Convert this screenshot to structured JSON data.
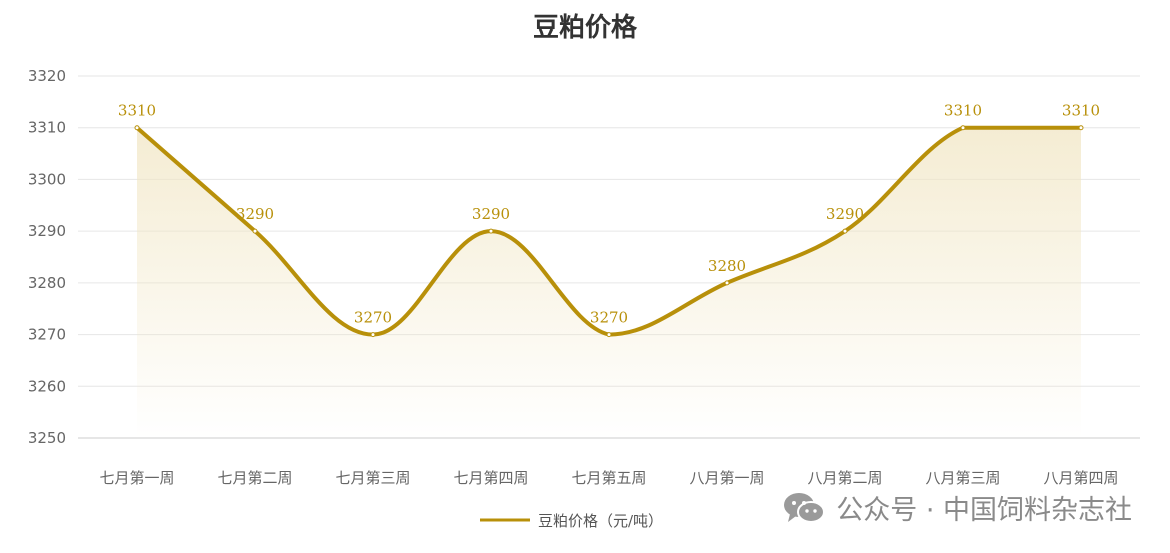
{
  "chart_data": {
    "type": "line",
    "title": "豆粕价格",
    "categories": [
      "七月第一周",
      "七月第二周",
      "七月第三周",
      "七月第四周",
      "七月第五周",
      "八月第一周",
      "八月第二周",
      "八月第三周",
      "八月第四周"
    ],
    "series": [
      {
        "name": "豆粕价格（元/吨）",
        "values": [
          3310,
          3290,
          3270,
          3290,
          3270,
          3280,
          3290,
          3310,
          3310
        ]
      }
    ],
    "ylim": [
      3250,
      3320
    ],
    "yticks": [
      3250,
      3260,
      3270,
      3280,
      3290,
      3300,
      3310,
      3320
    ],
    "grid": true,
    "smooth": true,
    "legend_position": "bottom-center",
    "colors": {
      "line": "#b8900a",
      "area": "#f1e6c4",
      "label": "#b8900a",
      "grid": "#e6e6e6"
    }
  },
  "watermark": {
    "text": "公众号 · 中国饲料杂志社",
    "icon": "wechat-icon"
  }
}
